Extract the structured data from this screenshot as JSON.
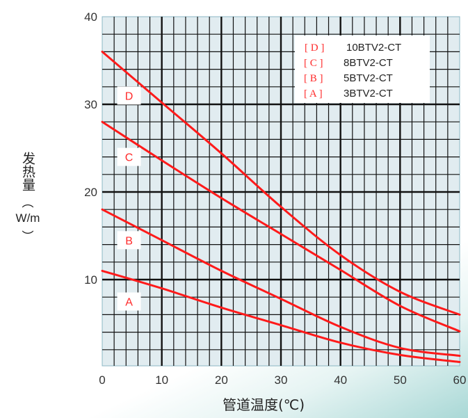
{
  "chart_data": {
    "type": "line",
    "title": "",
    "xlabel": "管道温度(℃)",
    "ylabel": "发热量(W/m)",
    "xlim": [
      0,
      60
    ],
    "ylim": [
      0,
      40
    ],
    "x_ticks": [
      "0",
      "10",
      "20",
      "30",
      "40",
      "50",
      "60"
    ],
    "y_ticks": [
      "10",
      "20",
      "30",
      "40"
    ],
    "grid": true,
    "legend_position": "upper right",
    "x": [
      0,
      10,
      20,
      30,
      40,
      50,
      60
    ],
    "series": [
      {
        "name": "10BTV2-CT",
        "key": "D",
        "values": [
          36,
          30.2,
          24.4,
          18.3,
          12.8,
          8.6,
          6.0
        ]
      },
      {
        "name": "8BTV2-CT",
        "key": "C",
        "values": [
          28,
          23.6,
          19.3,
          15.2,
          11.1,
          7.0,
          4.1
        ]
      },
      {
        "name": "5BTV2-CT",
        "key": "B",
        "values": [
          18,
          14.5,
          11.0,
          7.8,
          4.6,
          2.2,
          1.3
        ]
      },
      {
        "name": "3BTV2-CT",
        "key": "A",
        "values": [
          11,
          9.0,
          6.8,
          4.8,
          2.8,
          1.4,
          0.6
        ]
      }
    ],
    "annotations": [
      {
        "text": "D",
        "x": 4.5,
        "y": 31
      },
      {
        "text": "C",
        "x": 4.5,
        "y": 24
      },
      {
        "text": "B",
        "x": 4.5,
        "y": 14.5
      },
      {
        "text": "A",
        "x": 4.5,
        "y": 7.5
      }
    ]
  },
  "legend": {
    "items": [
      {
        "key": "[ D ]",
        "label": "10BTV2-CT"
      },
      {
        "key": "[ C ]",
        "label": "8BTV2-CT"
      },
      {
        "key": "[ B ]",
        "label": "5BTV2-CT"
      },
      {
        "key": "[ A ]",
        "label": "3BTV2-CT"
      }
    ]
  },
  "axis": {
    "ylabel_cn": "发热量",
    "ylabel_unit_open": "︵",
    "ylabel_unit": "W/m",
    "ylabel_unit_close": "︶",
    "xlabel": "管道温度(℃)"
  },
  "colors": {
    "curve": "#ff1a1a",
    "plot_bg": "#e1ecf0",
    "grid": "#111111",
    "label_text": "#ff2a2a"
  }
}
